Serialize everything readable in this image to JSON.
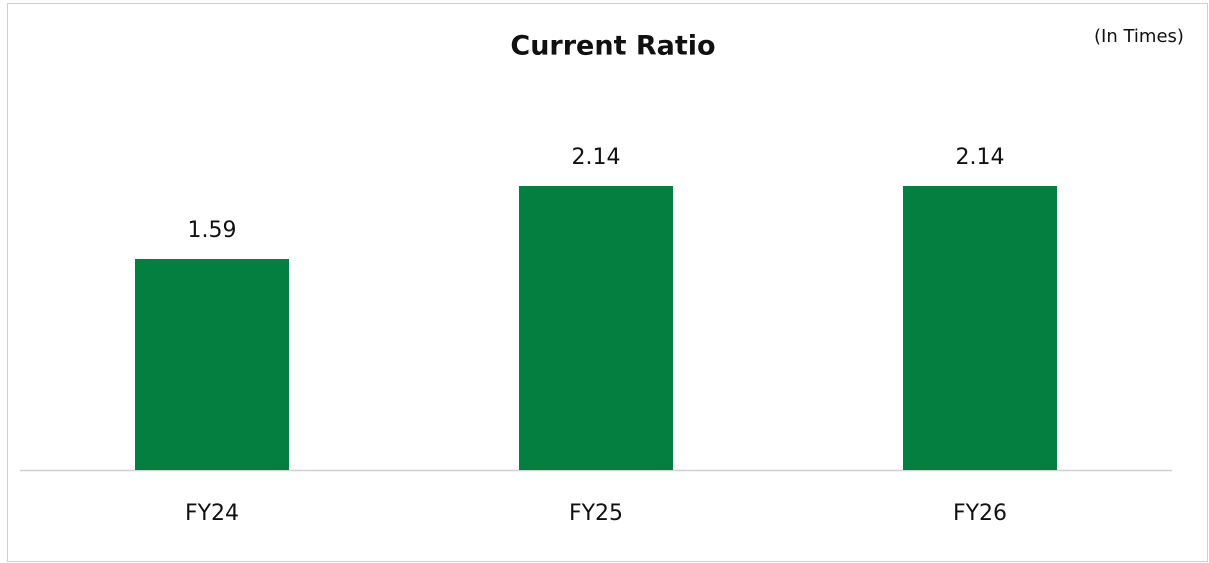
{
  "chart_data": {
    "type": "bar",
    "title": "Current Ratio",
    "unit_note": "(In Times)",
    "categories": [
      "FY24",
      "FY25",
      "FY26"
    ],
    "values": [
      1.59,
      2.14,
      2.14
    ],
    "color": "#047f3f"
  }
}
